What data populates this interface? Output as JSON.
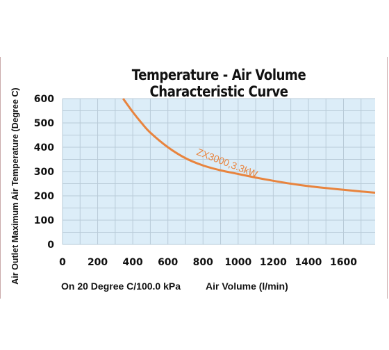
{
  "chart_data": {
    "type": "line",
    "title": "Temperature - Air Volume Characteristic Curve",
    "ylabel": "Air Outlet Maximum Air Temperature (Degree C)",
    "xlabel": "Air Volume (l/min)",
    "note": "On 20 Degree C/100.0 kPa",
    "xlim": [
      0,
      1780
    ],
    "ylim": [
      0,
      600
    ],
    "x_ticks": [
      0,
      200,
      400,
      600,
      800,
      1000,
      1200,
      1400,
      1600
    ],
    "y_ticks": [
      0,
      100,
      200,
      300,
      400,
      500,
      600
    ],
    "grid": true,
    "series": [
      {
        "name": "ZX3000,3.3kW",
        "color": "#e8843e",
        "x": [
          345,
          400,
          450,
          500,
          600,
          700,
          800,
          900,
          1000,
          1100,
          1200,
          1300,
          1400,
          1500,
          1600,
          1700,
          1780
        ],
        "y": [
          600,
          545,
          500,
          460,
          400,
          355,
          325,
          305,
          290,
          275,
          262,
          250,
          240,
          232,
          225,
          218,
          213
        ]
      }
    ],
    "colors": {
      "plot_bg": "#dcedf8",
      "grid": "#b9cbd8",
      "line": "#e8843e"
    }
  }
}
